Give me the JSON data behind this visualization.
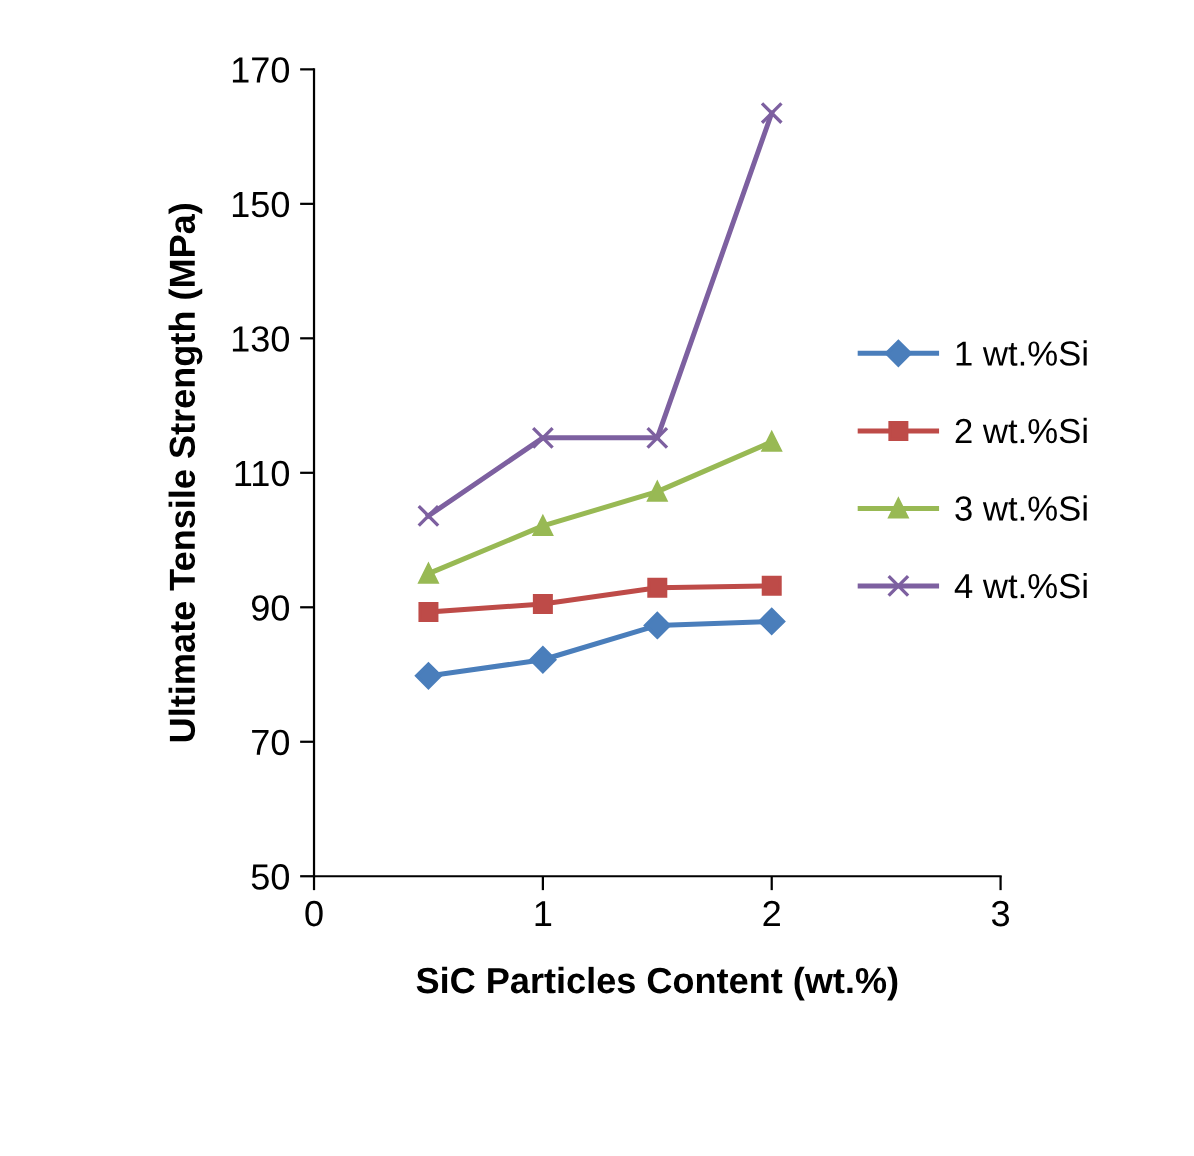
{
  "chart_data": {
    "type": "line",
    "xlabel": "SiC Particles Content (wt.%)",
    "ylabel": "Ultimate Tensile Strength (MPa)",
    "x": [
      0.5,
      1,
      1.5,
      2
    ],
    "xlim": [
      0,
      3
    ],
    "xticks": [
      0,
      1,
      2,
      3
    ],
    "ylim": [
      50,
      170
    ],
    "yticks": [
      50,
      70,
      90,
      110,
      130,
      150,
      170
    ],
    "grid": false,
    "legend": "right",
    "series": [
      {
        "name": "1 wt.%Si",
        "color": "#4a7ebb",
        "marker": "diamond",
        "values": [
          79.8,
          82.2,
          87.3,
          87.9
        ]
      },
      {
        "name": "2 wt.%Si",
        "color": "#be4b48",
        "marker": "square",
        "values": [
          89.3,
          90.5,
          92.9,
          93.2
        ]
      },
      {
        "name": "3 wt.%Si",
        "color": "#98b954",
        "marker": "triangle",
        "values": [
          95,
          102.1,
          107.2,
          114.6
        ]
      },
      {
        "name": "4 wt.%Si",
        "color": "#7d60a0",
        "marker": "cross",
        "values": [
          103.6,
          115.2,
          115.2,
          163.5
        ]
      }
    ]
  }
}
